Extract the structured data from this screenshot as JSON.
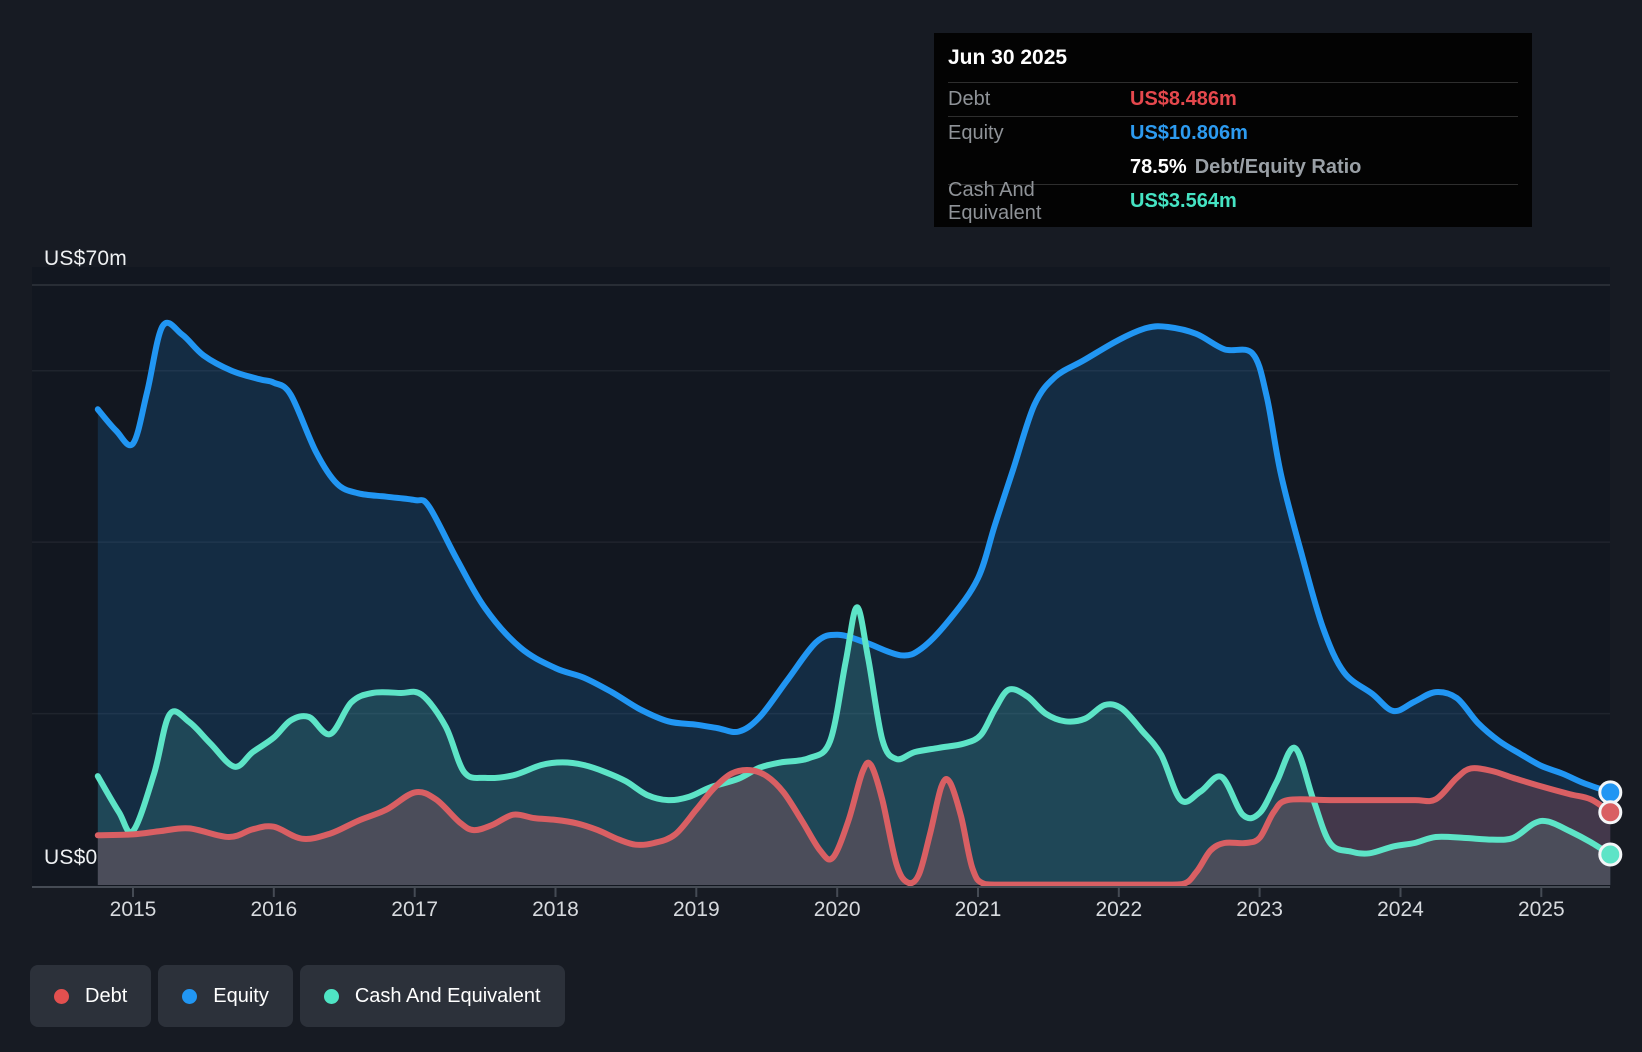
{
  "y_axis": {
    "top_label": "US$70m",
    "bottom_label": "US$0"
  },
  "x_axis": {
    "years": [
      "2015",
      "2016",
      "2017",
      "2018",
      "2019",
      "2020",
      "2021",
      "2022",
      "2023",
      "2024",
      "2025"
    ]
  },
  "tooltip": {
    "title": "Jun 30 2025",
    "debt_label": "Debt",
    "debt_value": "US$8.486m",
    "equity_label": "Equity",
    "equity_value": "US$10.806m",
    "ratio_value": "78.5%",
    "ratio_label": "Debt/Equity Ratio",
    "cash_label": "Cash And Equivalent",
    "cash_value": "US$3.564m"
  },
  "legend": [
    {
      "label": "Debt",
      "color": "#e2504f"
    },
    {
      "label": "Equity",
      "color": "#2196f3"
    },
    {
      "label": "Cash And Equivalent",
      "color": "#4fe4c4"
    }
  ],
  "colors": {
    "debt_value": "#e5484d",
    "equity_value": "#2d9bf0",
    "cash_value": "#45e3c3",
    "debt_line": "#d95f63",
    "equity_line": "#2196f3",
    "cash_line": "#5de4c7",
    "debt_fill": "rgba(217,95,99,0.24)",
    "equity_fill": "rgba(33,150,243,0.17)",
    "cash_fill": "rgba(93,228,199,0.15)",
    "grid": "rgba(255,255,255,0.06)",
    "grid_top": "rgba(255,255,255,0.13)",
    "axis": "#454b54",
    "plot_bg": "#121720"
  },
  "chart_data": {
    "type": "area",
    "title": "Debt to Equity History (US$ millions)",
    "x_unit": "decimal_year",
    "x_range": [
      2014.75,
      2025.49
    ],
    "ylim": [
      0,
      70
    ],
    "grid": "on",
    "legend_position": "bottom-left",
    "gridline_values": [
      70,
      60,
      40,
      20
    ],
    "x_ticks": [
      2015,
      2016,
      2017,
      2018,
      2019,
      2020,
      2021,
      2022,
      2023,
      2024,
      2025
    ],
    "last_point_date": "Jun 30 2025",
    "series": [
      {
        "name": "Equity",
        "points": [
          [
            2014.75,
            55.5
          ],
          [
            2014.88,
            53.0
          ],
          [
            2015.0,
            51.5
          ],
          [
            2015.1,
            57.5
          ],
          [
            2015.21,
            65.2
          ],
          [
            2015.35,
            64.2
          ],
          [
            2015.5,
            61.8
          ],
          [
            2015.7,
            60.0
          ],
          [
            2015.9,
            59.0
          ],
          [
            2016.0,
            58.6
          ],
          [
            2016.12,
            57.2
          ],
          [
            2016.3,
            50.5
          ],
          [
            2016.45,
            46.8
          ],
          [
            2016.6,
            45.7
          ],
          [
            2016.8,
            45.3
          ],
          [
            2017.0,
            44.9
          ],
          [
            2017.1,
            44.2
          ],
          [
            2017.3,
            38.0
          ],
          [
            2017.5,
            32.3
          ],
          [
            2017.75,
            27.7
          ],
          [
            2018.0,
            25.3
          ],
          [
            2018.2,
            24.2
          ],
          [
            2018.4,
            22.5
          ],
          [
            2018.6,
            20.5
          ],
          [
            2018.8,
            19.1
          ],
          [
            2019.0,
            18.7
          ],
          [
            2019.15,
            18.3
          ],
          [
            2019.3,
            17.9
          ],
          [
            2019.45,
            19.6
          ],
          [
            2019.65,
            24.0
          ],
          [
            2019.85,
            28.3
          ],
          [
            2020.0,
            29.2
          ],
          [
            2020.2,
            28.3
          ],
          [
            2020.45,
            26.8
          ],
          [
            2020.6,
            27.6
          ],
          [
            2020.8,
            31.0
          ],
          [
            2021.0,
            35.8
          ],
          [
            2021.12,
            42.0
          ],
          [
            2021.25,
            48.5
          ],
          [
            2021.4,
            56.0
          ],
          [
            2021.55,
            59.3
          ],
          [
            2021.75,
            61.2
          ],
          [
            2022.0,
            63.6
          ],
          [
            2022.2,
            65.0
          ],
          [
            2022.35,
            65.1
          ],
          [
            2022.55,
            64.3
          ],
          [
            2022.75,
            62.5
          ],
          [
            2022.95,
            62.0
          ],
          [
            2023.05,
            57.0
          ],
          [
            2023.15,
            48.0
          ],
          [
            2023.3,
            38.5
          ],
          [
            2023.45,
            30.0
          ],
          [
            2023.6,
            24.8
          ],
          [
            2023.8,
            22.3
          ],
          [
            2023.95,
            20.3
          ],
          [
            2024.1,
            21.4
          ],
          [
            2024.25,
            22.5
          ],
          [
            2024.4,
            21.8
          ],
          [
            2024.55,
            18.9
          ],
          [
            2024.7,
            16.8
          ],
          [
            2024.85,
            15.3
          ],
          [
            2025.0,
            13.9
          ],
          [
            2025.15,
            13.0
          ],
          [
            2025.3,
            11.9
          ],
          [
            2025.49,
            10.806
          ]
        ]
      },
      {
        "name": "Cash And Equivalent",
        "points": [
          [
            2014.75,
            12.7
          ],
          [
            2014.9,
            8.5
          ],
          [
            2015.0,
            6.3
          ],
          [
            2015.15,
            13.0
          ],
          [
            2015.26,
            19.9
          ],
          [
            2015.4,
            19.0
          ],
          [
            2015.55,
            16.5
          ],
          [
            2015.72,
            13.8
          ],
          [
            2015.85,
            15.5
          ],
          [
            2016.0,
            17.2
          ],
          [
            2016.12,
            19.2
          ],
          [
            2016.25,
            19.6
          ],
          [
            2016.4,
            17.6
          ],
          [
            2016.55,
            21.3
          ],
          [
            2016.7,
            22.4
          ],
          [
            2016.9,
            22.4
          ],
          [
            2017.05,
            22.2
          ],
          [
            2017.22,
            18.5
          ],
          [
            2017.35,
            13.2
          ],
          [
            2017.5,
            12.5
          ],
          [
            2017.7,
            12.8
          ],
          [
            2017.9,
            14.0
          ],
          [
            2018.05,
            14.3
          ],
          [
            2018.2,
            14.0
          ],
          [
            2018.35,
            13.2
          ],
          [
            2018.5,
            12.1
          ],
          [
            2018.65,
            10.5
          ],
          [
            2018.8,
            9.9
          ],
          [
            2018.95,
            10.3
          ],
          [
            2019.1,
            11.4
          ],
          [
            2019.3,
            12.4
          ],
          [
            2019.45,
            13.7
          ],
          [
            2019.6,
            14.3
          ],
          [
            2019.8,
            14.8
          ],
          [
            2019.95,
            16.8
          ],
          [
            2020.06,
            26.0
          ],
          [
            2020.14,
            32.4
          ],
          [
            2020.22,
            26.5
          ],
          [
            2020.32,
            17.0
          ],
          [
            2020.42,
            14.7
          ],
          [
            2020.55,
            15.5
          ],
          [
            2020.72,
            16.0
          ],
          [
            2020.9,
            16.5
          ],
          [
            2021.02,
            17.5
          ],
          [
            2021.12,
            20.5
          ],
          [
            2021.22,
            22.8
          ],
          [
            2021.35,
            22.0
          ],
          [
            2021.48,
            20.0
          ],
          [
            2021.62,
            19.1
          ],
          [
            2021.76,
            19.4
          ],
          [
            2021.9,
            21.0
          ],
          [
            2022.02,
            20.6
          ],
          [
            2022.16,
            18.1
          ],
          [
            2022.3,
            15.2
          ],
          [
            2022.44,
            9.9
          ],
          [
            2022.58,
            10.9
          ],
          [
            2022.73,
            12.6
          ],
          [
            2022.88,
            8.2
          ],
          [
            2023.0,
            8.4
          ],
          [
            2023.12,
            12.0
          ],
          [
            2023.25,
            16.0
          ],
          [
            2023.38,
            10.0
          ],
          [
            2023.5,
            4.9
          ],
          [
            2023.65,
            3.9
          ],
          [
            2023.78,
            3.7
          ],
          [
            2023.95,
            4.5
          ],
          [
            2024.1,
            4.9
          ],
          [
            2024.25,
            5.6
          ],
          [
            2024.45,
            5.5
          ],
          [
            2024.65,
            5.3
          ],
          [
            2024.8,
            5.5
          ],
          [
            2024.95,
            7.2
          ],
          [
            2025.05,
            7.4
          ],
          [
            2025.2,
            6.3
          ],
          [
            2025.35,
            5.0
          ],
          [
            2025.49,
            3.564
          ]
        ]
      },
      {
        "name": "Debt",
        "points": [
          [
            2014.75,
            5.8
          ],
          [
            2015.0,
            5.9
          ],
          [
            2015.2,
            6.3
          ],
          [
            2015.4,
            6.6
          ],
          [
            2015.68,
            5.6
          ],
          [
            2015.85,
            6.5
          ],
          [
            2016.0,
            6.8
          ],
          [
            2016.2,
            5.4
          ],
          [
            2016.4,
            6.0
          ],
          [
            2016.6,
            7.5
          ],
          [
            2016.8,
            8.8
          ],
          [
            2017.0,
            10.8
          ],
          [
            2017.15,
            10.0
          ],
          [
            2017.32,
            7.3
          ],
          [
            2017.42,
            6.4
          ],
          [
            2017.55,
            7.0
          ],
          [
            2017.7,
            8.2
          ],
          [
            2017.85,
            7.8
          ],
          [
            2018.0,
            7.6
          ],
          [
            2018.15,
            7.2
          ],
          [
            2018.3,
            6.4
          ],
          [
            2018.45,
            5.3
          ],
          [
            2018.57,
            4.7
          ],
          [
            2018.7,
            4.9
          ],
          [
            2018.85,
            5.9
          ],
          [
            2019.0,
            8.8
          ],
          [
            2019.12,
            11.2
          ],
          [
            2019.25,
            13.0
          ],
          [
            2019.38,
            13.4
          ],
          [
            2019.5,
            12.7
          ],
          [
            2019.62,
            10.8
          ],
          [
            2019.75,
            7.5
          ],
          [
            2019.88,
            4.0
          ],
          [
            2019.97,
            3.2
          ],
          [
            2020.08,
            7.5
          ],
          [
            2020.18,
            13.2
          ],
          [
            2020.24,
            14.0
          ],
          [
            2020.32,
            10.0
          ],
          [
            2020.42,
            2.5
          ],
          [
            2020.5,
            0.3
          ],
          [
            2020.58,
            1.2
          ],
          [
            2020.66,
            6.0
          ],
          [
            2020.74,
            11.5
          ],
          [
            2020.8,
            12.0
          ],
          [
            2020.88,
            8.0
          ],
          [
            2020.96,
            2.0
          ],
          [
            2021.05,
            0.1
          ],
          [
            2021.3,
            0.05
          ],
          [
            2021.6,
            0.05
          ],
          [
            2021.9,
            0.05
          ],
          [
            2022.2,
            0.05
          ],
          [
            2022.45,
            0.1
          ],
          [
            2022.55,
            1.5
          ],
          [
            2022.65,
            4.0
          ],
          [
            2022.75,
            4.9
          ],
          [
            2022.9,
            4.9
          ],
          [
            2023.0,
            5.5
          ],
          [
            2023.1,
            8.5
          ],
          [
            2023.2,
            9.9
          ],
          [
            2023.5,
            9.9
          ],
          [
            2023.8,
            9.9
          ],
          [
            2024.1,
            9.9
          ],
          [
            2024.25,
            10.0
          ],
          [
            2024.4,
            12.5
          ],
          [
            2024.5,
            13.6
          ],
          [
            2024.65,
            13.3
          ],
          [
            2024.8,
            12.5
          ],
          [
            2025.0,
            11.5
          ],
          [
            2025.2,
            10.6
          ],
          [
            2025.35,
            10.0
          ],
          [
            2025.49,
            8.486
          ]
        ]
      }
    ],
    "last_values": {
      "Debt": "US$8.486m",
      "Equity": "US$10.806m",
      "Cash And Equivalent": "US$3.564m",
      "debt_equity_ratio": "78.5%"
    }
  }
}
